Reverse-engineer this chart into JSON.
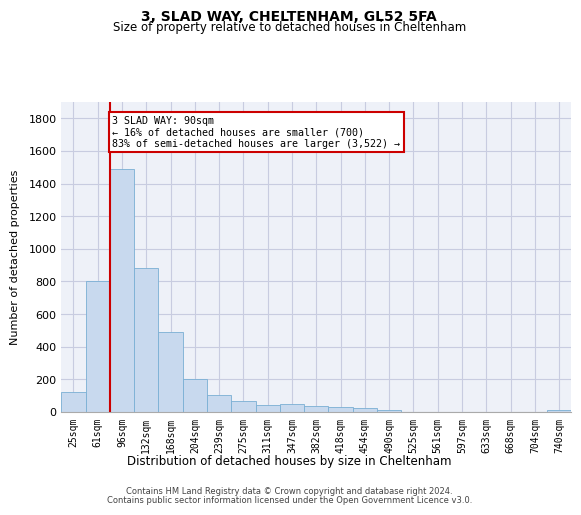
{
  "title1": "3, SLAD WAY, CHELTENHAM, GL52 5FA",
  "title2": "Size of property relative to detached houses in Cheltenham",
  "xlabel": "Distribution of detached houses by size in Cheltenham",
  "ylabel": "Number of detached properties",
  "categories": [
    "25sqm",
    "61sqm",
    "96sqm",
    "132sqm",
    "168sqm",
    "204sqm",
    "239sqm",
    "275sqm",
    "311sqm",
    "347sqm",
    "382sqm",
    "418sqm",
    "454sqm",
    "490sqm",
    "525sqm",
    "561sqm",
    "597sqm",
    "633sqm",
    "668sqm",
    "704sqm",
    "740sqm"
  ],
  "values": [
    125,
    800,
    1490,
    880,
    490,
    205,
    105,
    65,
    45,
    50,
    35,
    30,
    25,
    15,
    0,
    0,
    0,
    0,
    0,
    0,
    10
  ],
  "bar_color": "#c8d9ee",
  "bar_edge_color": "#7aafd4",
  "grid_color": "#c8cce0",
  "vline_color": "#cc0000",
  "annotation_text": "3 SLAD WAY: 90sqm\n← 16% of detached houses are smaller (700)\n83% of semi-detached houses are larger (3,522) →",
  "annotation_box_color": "#cc0000",
  "ylim": [
    0,
    1900
  ],
  "yticks": [
    0,
    200,
    400,
    600,
    800,
    1000,
    1200,
    1400,
    1600,
    1800
  ],
  "footer1": "Contains HM Land Registry data © Crown copyright and database right 2024.",
  "footer2": "Contains public sector information licensed under the Open Government Licence v3.0.",
  "bg_color": "#eef1f8"
}
